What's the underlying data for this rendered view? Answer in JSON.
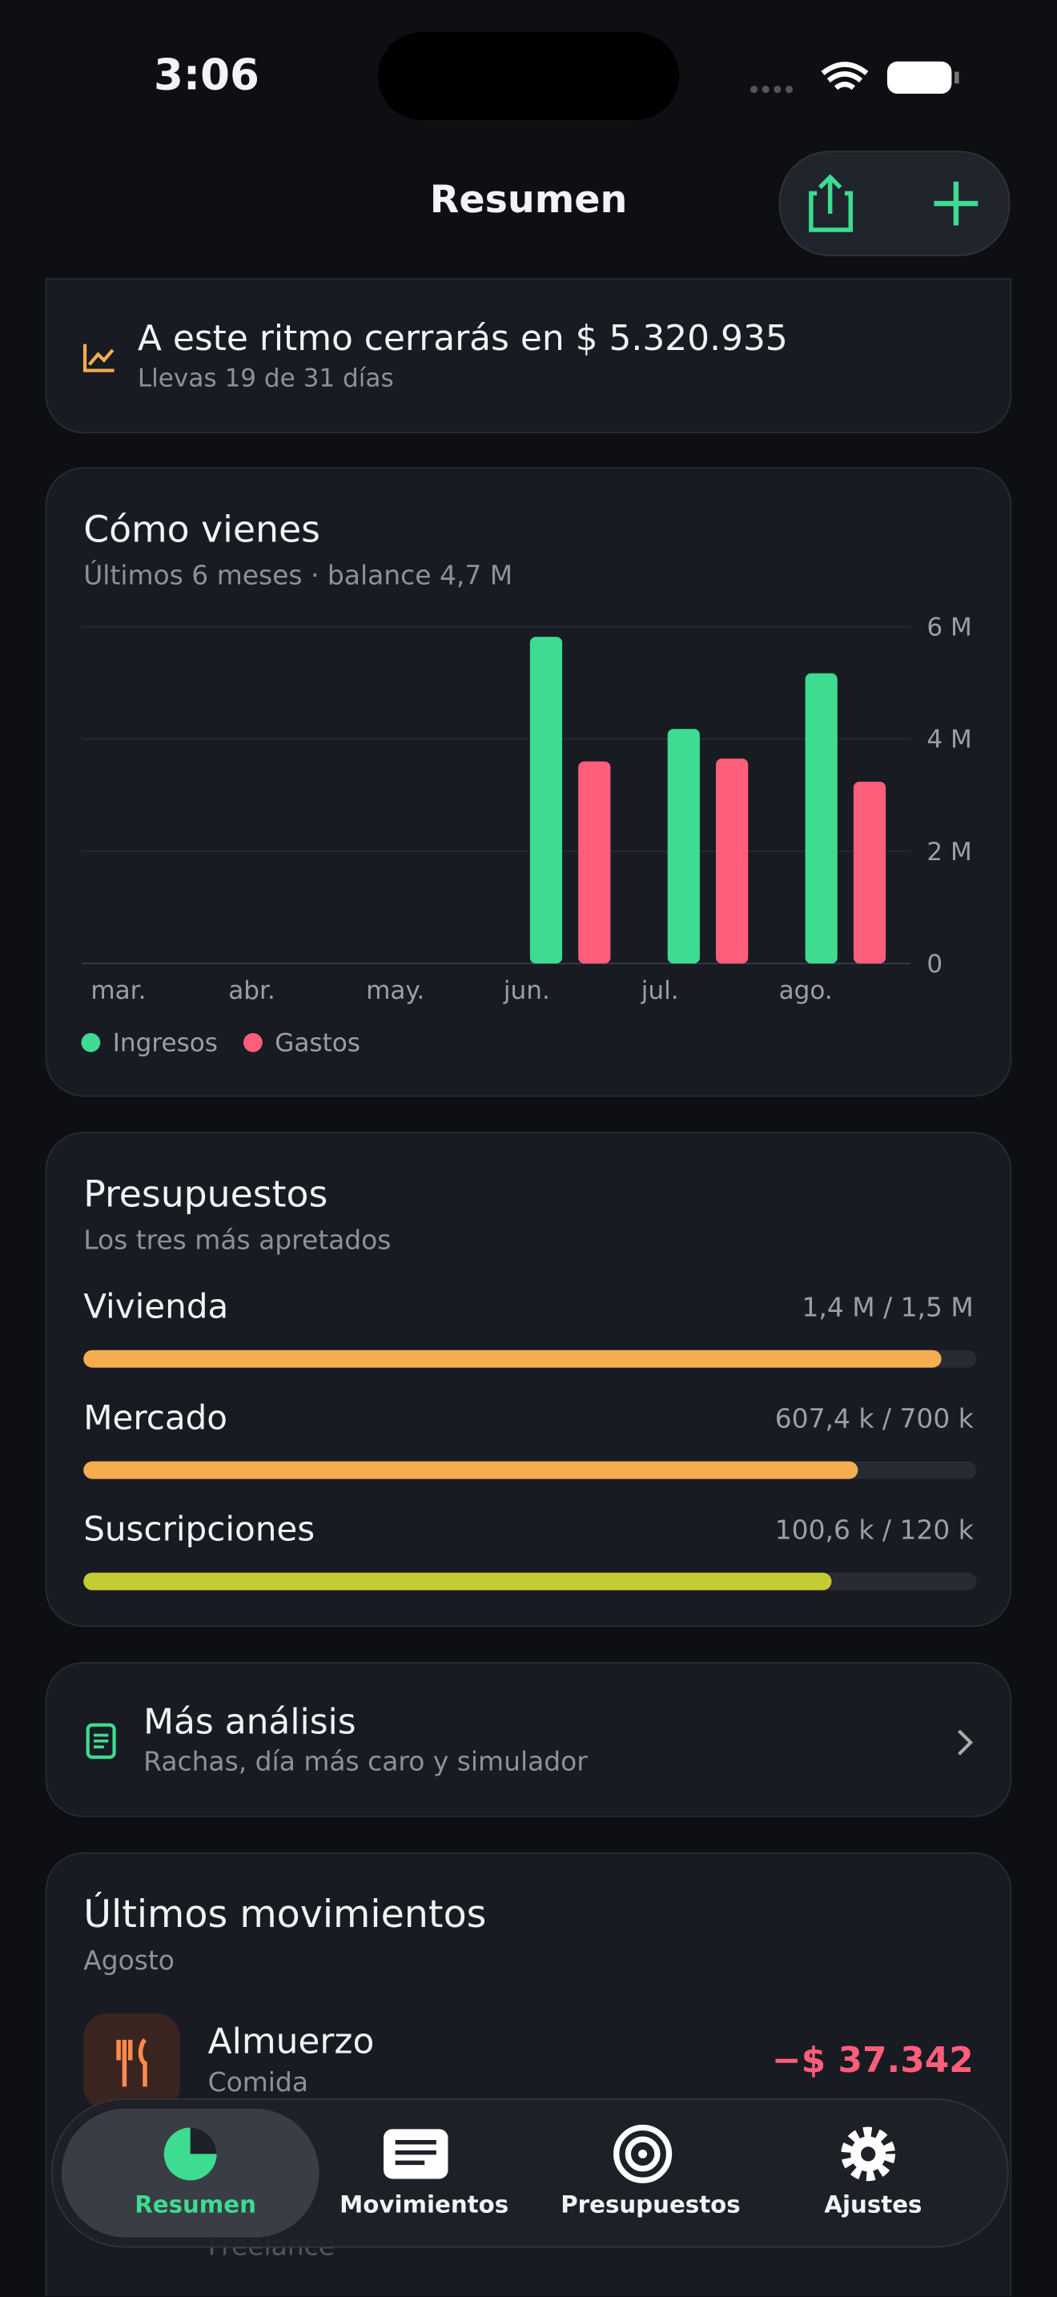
{
  "status_bar": {
    "time": "3:06"
  },
  "nav": {
    "title": "Resumen"
  },
  "forecast": {
    "title": "A este ritmo cerrarás en $ 5.320.935",
    "subtitle": "Llevas 19 de 31 días"
  },
  "chart_data": {
    "type": "bar",
    "title": "Cómo vienes",
    "subtitle": "Últimos 6 meses · balance 4,7 M",
    "categories": [
      "mar.",
      "abr.",
      "may.",
      "jun.",
      "jul.",
      "ago."
    ],
    "series": [
      {
        "name": "Ingresos",
        "color": "#3ddc91",
        "values": [
          null,
          null,
          null,
          5.82,
          4.18,
          5.17
        ]
      },
      {
        "name": "Gastos",
        "color": "#ff5e7a",
        "values": [
          null,
          null,
          null,
          3.6,
          3.65,
          3.24
        ]
      }
    ],
    "ylim": [
      0,
      6
    ],
    "yticks": [
      {
        "value": 0,
        "label": "0"
      },
      {
        "value": 2,
        "label": "2 M"
      },
      {
        "value": 4,
        "label": "4 M"
      },
      {
        "value": 6,
        "label": "6 M"
      }
    ],
    "grid": true,
    "legend": "bottom-left"
  },
  "budgets": {
    "title": "Presupuestos",
    "subtitle": "Los tres más apretados",
    "items": [
      {
        "name": "Vivienda",
        "label": "1,4 M / 1,5 M",
        "spent": 1.44,
        "limit": 1.5,
        "color": "#f5ad4f"
      },
      {
        "name": "Mercado",
        "label": "607,4 k / 700 k",
        "spent": 607.4,
        "limit": 700,
        "color": "#f5ad4f"
      },
      {
        "name": "Suscripciones",
        "label": "100,6 k / 120 k",
        "spent": 100.6,
        "limit": 120,
        "color": "#c4cc33"
      }
    ]
  },
  "analysis": {
    "title": "Más análisis",
    "subtitle": "Rachas, día más caro y simulador"
  },
  "movements": {
    "title": "Últimos movimientos",
    "subtitle": "Agosto",
    "items": [
      {
        "name": "Almuerzo",
        "category": "Comida",
        "amount": "−$ 37.342"
      },
      {
        "category": "Freelance"
      }
    ]
  },
  "tabs": [
    "Resumen",
    "Movimientos",
    "Presupuestos",
    "Ajustes"
  ]
}
